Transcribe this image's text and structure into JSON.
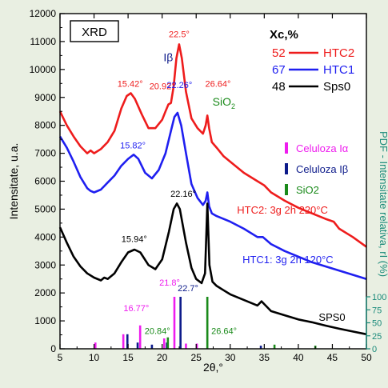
{
  "chart_data": {
    "type": "line",
    "xlabel": "2θ,°",
    "ylabel": "Intensitate, u.a.",
    "right_ylabel": "PDF - Intensitate relativa, rI (%)",
    "xlim": [
      5,
      50
    ],
    "ylim": [
      0,
      12000
    ],
    "x_ticks": [
      "5",
      "10",
      "15",
      "20",
      "25",
      "30",
      "35",
      "40",
      "45",
      "50"
    ],
    "y_ticks": [
      "0",
      "1000",
      "2000",
      "3000",
      "4000",
      "5000",
      "6000",
      "7000",
      "8000",
      "9000",
      "10000",
      "11000",
      "12000"
    ],
    "right_ticks": [
      "0",
      "25",
      "50",
      "75",
      "100"
    ],
    "grid": false,
    "title_box": "XRD",
    "xc_legend": {
      "header": "Xc,%",
      "rows": [
        {
          "value": "52",
          "name": "HTC2",
          "color": "#ee1c1c"
        },
        {
          "value": "67",
          "name": "HTC1",
          "color": "#1f1ff0"
        },
        {
          "value": "48",
          "name": "Sps0",
          "color": "#000000"
        }
      ]
    },
    "pdf_legend": [
      {
        "name": "Celuloza Iα",
        "color": "#ee1cee"
      },
      {
        "name": "Celuloza Iβ",
        "color": "#0c1a8a"
      },
      {
        "name": "SiO2",
        "color": "#1a8a1a"
      }
    ],
    "series": [
      {
        "name": "HTC2",
        "color": "#ee1c1c",
        "points": [
          [
            5,
            8500
          ],
          [
            6,
            8000
          ],
          [
            7,
            7600
          ],
          [
            8,
            7250
          ],
          [
            9,
            7000
          ],
          [
            9.5,
            7100
          ],
          [
            10,
            7000
          ],
          [
            11,
            7150
          ],
          [
            12,
            7400
          ],
          [
            13,
            7800
          ],
          [
            14,
            8600
          ],
          [
            14.8,
            9050
          ],
          [
            15.4,
            9150
          ],
          [
            16,
            8950
          ],
          [
            17,
            8400
          ],
          [
            18,
            7900
          ],
          [
            19,
            7900
          ],
          [
            20,
            8200
          ],
          [
            20.5,
            8500
          ],
          [
            20.92,
            8750
          ],
          [
            21.3,
            8800
          ],
          [
            21.7,
            9400
          ],
          [
            22.1,
            10400
          ],
          [
            22.5,
            10900
          ],
          [
            22.9,
            10400
          ],
          [
            23.5,
            9200
          ],
          [
            24.3,
            8250
          ],
          [
            25.2,
            7900
          ],
          [
            26,
            7700
          ],
          [
            26.4,
            8000
          ],
          [
            26.64,
            8350
          ],
          [
            26.9,
            7900
          ],
          [
            27.3,
            7400
          ],
          [
            28,
            7200
          ],
          [
            29,
            6900
          ],
          [
            30,
            6700
          ],
          [
            32,
            6300
          ],
          [
            34,
            6000
          ],
          [
            35,
            5850
          ],
          [
            36,
            5600
          ],
          [
            38,
            5300
          ],
          [
            40,
            5050
          ],
          [
            42,
            4850
          ],
          [
            44,
            4650
          ],
          [
            45.2,
            4550
          ],
          [
            46,
            4300
          ],
          [
            48,
            4000
          ],
          [
            50,
            3650
          ]
        ]
      },
      {
        "name": "HTC1",
        "color": "#1f1ff0",
        "points": [
          [
            5,
            7600
          ],
          [
            6,
            7200
          ],
          [
            7,
            6700
          ],
          [
            8,
            6150
          ],
          [
            9,
            5750
          ],
          [
            9.5,
            5650
          ],
          [
            10,
            5600
          ],
          [
            11,
            5700
          ],
          [
            12,
            5950
          ],
          [
            13,
            6200
          ],
          [
            14,
            6550
          ],
          [
            15,
            6800
          ],
          [
            15.82,
            6950
          ],
          [
            16.5,
            6800
          ],
          [
            17.5,
            6300
          ],
          [
            18.5,
            6100
          ],
          [
            19.5,
            6400
          ],
          [
            20.5,
            7000
          ],
          [
            21.3,
            7800
          ],
          [
            21.8,
            8300
          ],
          [
            22.26,
            8450
          ],
          [
            22.8,
            8000
          ],
          [
            23.5,
            7000
          ],
          [
            24.3,
            5900
          ],
          [
            25.2,
            5400
          ],
          [
            26,
            5150
          ],
          [
            26.4,
            5300
          ],
          [
            26.64,
            5600
          ],
          [
            26.9,
            5100
          ],
          [
            27.3,
            4850
          ],
          [
            28,
            4750
          ],
          [
            29,
            4650
          ],
          [
            30,
            4550
          ],
          [
            32,
            4300
          ],
          [
            34,
            4000
          ],
          [
            34.8,
            4000
          ],
          [
            36,
            3750
          ],
          [
            38,
            3500
          ],
          [
            40,
            3300
          ],
          [
            42,
            3100
          ],
          [
            44,
            2950
          ],
          [
            46,
            2800
          ],
          [
            48,
            2650
          ],
          [
            50,
            2500
          ]
        ]
      },
      {
        "name": "Sps0",
        "color": "#000000",
        "points": [
          [
            5,
            4350
          ],
          [
            6,
            3800
          ],
          [
            7,
            3300
          ],
          [
            8,
            2950
          ],
          [
            9,
            2700
          ],
          [
            10,
            2550
          ],
          [
            11,
            2450
          ],
          [
            11.5,
            2550
          ],
          [
            12,
            2500
          ],
          [
            13,
            2700
          ],
          [
            14,
            3100
          ],
          [
            15,
            3450
          ],
          [
            15.94,
            3550
          ],
          [
            16.8,
            3450
          ],
          [
            18,
            3000
          ],
          [
            19,
            2850
          ],
          [
            20,
            3200
          ],
          [
            21,
            4200
          ],
          [
            21.7,
            5000
          ],
          [
            22.16,
            5200
          ],
          [
            22.6,
            5000
          ],
          [
            23.5,
            3800
          ],
          [
            24.3,
            2900
          ],
          [
            25,
            2500
          ],
          [
            25.8,
            2350
          ],
          [
            26.3,
            2700
          ],
          [
            26.64,
            5200
          ],
          [
            26.95,
            3000
          ],
          [
            27.4,
            2400
          ],
          [
            28,
            2250
          ],
          [
            29,
            2100
          ],
          [
            30,
            1950
          ],
          [
            32,
            1750
          ],
          [
            34,
            1550
          ],
          [
            34.6,
            1700
          ],
          [
            35.2,
            1550
          ],
          [
            36,
            1350
          ],
          [
            38,
            1200
          ],
          [
            40,
            1050
          ],
          [
            42,
            950
          ],
          [
            44,
            830
          ],
          [
            46,
            720
          ],
          [
            48,
            620
          ],
          [
            50,
            520
          ]
        ]
      }
    ],
    "reference_lines": [
      {
        "group": "Celuloza Iα",
        "color": "#ee1cee",
        "x": [
          10.2,
          14.3,
          16.77,
          20.3,
          21.8,
          23.5,
          25.1
        ],
        "rel": [
          12,
          28,
          45,
          20,
          100,
          10,
          10
        ]
      },
      {
        "group": "Celuloza Iβ",
        "color": "#0c1a8a",
        "x": [
          14.9,
          16.4,
          18.5,
          20.7,
          22.7,
          34.5
        ],
        "rel": [
          28,
          12,
          8,
          12,
          100,
          6
        ]
      },
      {
        "group": "SiO2",
        "color": "#1a8a1a",
        "x": [
          20.84,
          26.64,
          36.5,
          42.5
        ],
        "rel": [
          22,
          100,
          8,
          6
        ]
      }
    ],
    "annotations": [
      {
        "text": "22.5°",
        "x": 22.5,
        "y": 11160,
        "color": "#ee1c1c",
        "anchor": "middle"
      },
      {
        "text": "15.42°",
        "x": 15.3,
        "y": 9380,
        "color": "#ee1c1c",
        "anchor": "middle"
      },
      {
        "text": "20.92°",
        "x": 20.0,
        "y": 9290,
        "color": "#ee1c1c",
        "anchor": "middle"
      },
      {
        "text": "22.26°",
        "x": 22.55,
        "y": 9330,
        "color": "#1f1ff0",
        "anchor": "middle"
      },
      {
        "text": "26.64°",
        "x": 28.2,
        "y": 9380,
        "color": "#ee1c1c",
        "anchor": "middle"
      },
      {
        "text": "15.82°",
        "x": 15.7,
        "y": 7180,
        "color": "#1f1ff0",
        "anchor": "middle"
      },
      {
        "text": "22.16°",
        "x": 23.1,
        "y": 5440,
        "color": "#000000",
        "anchor": "middle"
      },
      {
        "text": "15.94°",
        "x": 15.9,
        "y": 3820,
        "color": "#000000",
        "anchor": "middle"
      },
      {
        "text": "21.8°",
        "x": 21.1,
        "y": 2260,
        "color": "#ee1cee",
        "anchor": "middle"
      },
      {
        "text": "22.7°",
        "x": 23.8,
        "y": 2060,
        "color": "#0c1a8a",
        "anchor": "middle"
      },
      {
        "text": "16.77°",
        "x": 16.2,
        "y": 1350,
        "color": "#ee1cee",
        "anchor": "middle"
      },
      {
        "text": "20.84°",
        "x": 19.3,
        "y": 530,
        "color": "#1a8a1a",
        "anchor": "middle"
      },
      {
        "text": "26.64°",
        "x": 29.1,
        "y": 530,
        "color": "#1a8a1a",
        "anchor": "middle"
      }
    ],
    "peak_labels": [
      {
        "text": "Iβ",
        "x": 20.2,
        "y": 10300,
        "color": "#0c1a8a"
      },
      {
        "text": "SiO",
        "sub": "2",
        "x": 27.4,
        "y": 8700,
        "color": "#1a8a1a"
      }
    ],
    "curve_labels": [
      {
        "text": "HTC2: 3g 2h 220°C",
        "x": 31.0,
        "y": 4840,
        "color": "#ee1c1c"
      },
      {
        "text": "HTC1: 3g 2h 120°C",
        "x": 31.8,
        "y": 3060,
        "color": "#1f1ff0"
      },
      {
        "text": "SPS0",
        "x": 43.0,
        "y": 1000,
        "color": "#000000"
      }
    ]
  }
}
